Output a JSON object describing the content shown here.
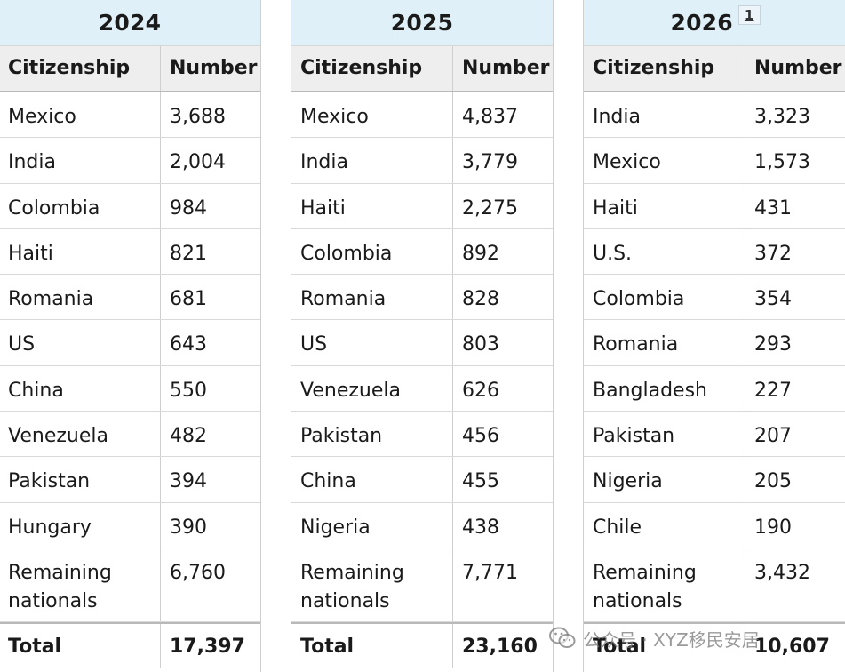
{
  "tables": [
    {
      "year": "2024",
      "ref": "",
      "col_country": "Citizenship",
      "col_number": "Number",
      "rows": [
        {
          "country": "Mexico",
          "number": "3,688"
        },
        {
          "country": "India",
          "number": "2,004"
        },
        {
          "country": "Colombia",
          "number": "984"
        },
        {
          "country": "Haiti",
          "number": "821"
        },
        {
          "country": "Romania",
          "number": "681"
        },
        {
          "country": "US",
          "number": "643"
        },
        {
          "country": "China",
          "number": "550"
        },
        {
          "country": "Venezuela",
          "number": "482"
        },
        {
          "country": "Pakistan",
          "number": "394"
        },
        {
          "country": "Hungary",
          "number": "390"
        },
        {
          "country": "Remaining nationals",
          "number": "6,760"
        }
      ],
      "total_label": "Total",
      "total_value": "17,397"
    },
    {
      "year": "2025",
      "ref": "",
      "col_country": "Citizenship",
      "col_number": "Number",
      "rows": [
        {
          "country": "Mexico",
          "number": "4,837"
        },
        {
          "country": "India",
          "number": "3,779"
        },
        {
          "country": "Haiti",
          "number": "2,275"
        },
        {
          "country": "Colombia",
          "number": "892"
        },
        {
          "country": "Romania",
          "number": "828"
        },
        {
          "country": "US",
          "number": "803"
        },
        {
          "country": "Venezuela",
          "number": "626"
        },
        {
          "country": "Pakistan",
          "number": "456"
        },
        {
          "country": "China",
          "number": "455"
        },
        {
          "country": "Nigeria",
          "number": "438"
        },
        {
          "country": "Remaining nationals",
          "number": "7,771"
        }
      ],
      "total_label": "Total",
      "total_value": "23,160"
    },
    {
      "year": "2026",
      "ref": "1",
      "col_country": "Citizenship",
      "col_number": "Number",
      "rows": [
        {
          "country": "India",
          "number": "3,323"
        },
        {
          "country": "Mexico",
          "number": "1,573"
        },
        {
          "country": "Haiti",
          "number": "431"
        },
        {
          "country": "U.S.",
          "number": "372"
        },
        {
          "country": "Colombia",
          "number": "354"
        },
        {
          "country": "Romania",
          "number": "293"
        },
        {
          "country": "Bangladesh",
          "number": "227"
        },
        {
          "country": "Pakistan",
          "number": "207"
        },
        {
          "country": "Nigeria",
          "number": "205"
        },
        {
          "country": "Chile",
          "number": "190"
        },
        {
          "country": "Remaining nationals",
          "number": "3,432"
        }
      ],
      "total_label": "Total",
      "total_value": "10,607"
    }
  ],
  "watermark": {
    "text": "公众号 · XYZ移民安居",
    "icon": "wechat-icon"
  }
}
